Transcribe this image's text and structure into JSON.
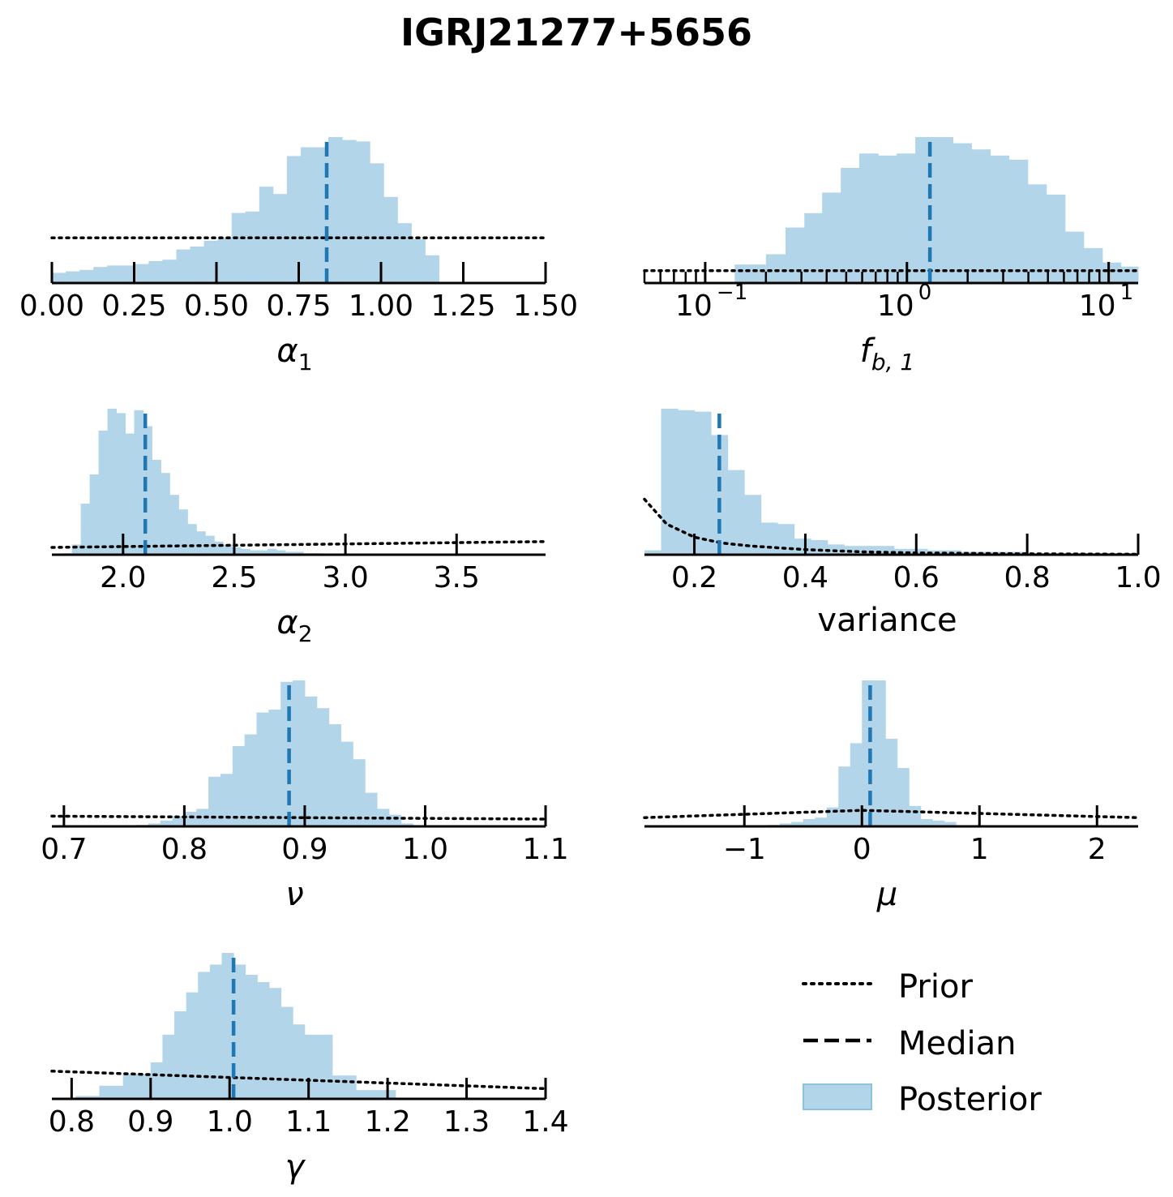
{
  "figure": {
    "title": "IGRJ21277+5656"
  },
  "colors": {
    "posterior": "#b3d5ea",
    "median": "#1f77b4",
    "prior": "#000000"
  },
  "legend": {
    "placement": "lower-right",
    "entries": [
      {
        "label": "Prior",
        "style": "dotted"
      },
      {
        "label": "Median",
        "style": "dashed"
      },
      {
        "label": "Posterior",
        "style": "patch"
      }
    ]
  },
  "chart_data": [
    {
      "type": "bar",
      "xlabel_sym": "α",
      "xlabel_sub": "1",
      "xlim": [
        0.0,
        1.5
      ],
      "xscale": "linear",
      "ticks": [
        0.0,
        0.25,
        0.5,
        0.75,
        1.0,
        1.25,
        1.5
      ],
      "tick_labels": [
        "0.00",
        "0.25",
        "0.50",
        "0.75",
        "1.00",
        "1.25",
        "1.50"
      ],
      "bins": [
        0.0,
        0.042,
        0.084,
        0.126,
        0.168,
        0.21,
        0.252,
        0.294,
        0.336,
        0.378,
        0.42,
        0.462,
        0.504,
        0.546,
        0.588,
        0.63,
        0.672,
        0.714,
        0.756,
        0.798,
        0.84,
        0.882,
        0.924,
        0.966,
        1.008,
        1.05,
        1.092,
        1.134,
        1.176,
        1.218
      ],
      "counts": [
        0.07,
        0.08,
        0.09,
        0.11,
        0.12,
        0.12,
        0.13,
        0.15,
        0.16,
        0.23,
        0.25,
        0.29,
        0.31,
        0.48,
        0.49,
        0.66,
        0.61,
        0.87,
        0.93,
        0.93,
        1.0,
        0.98,
        0.97,
        0.82,
        0.59,
        0.41,
        0.3,
        0.19,
        0.0
      ],
      "median": 0.835,
      "prior_x": [
        0.0,
        1.5
      ],
      "prior_y": [
        0.31,
        0.31
      ],
      "ymax": 1.0
    },
    {
      "type": "bar",
      "xlabel_sym": "f",
      "xlabel_sub": "b, 1",
      "xlim": [
        0.05,
        14.0
      ],
      "xscale": "log",
      "ticks": [
        0.1,
        1,
        10
      ],
      "tick_labels": [
        "10",
        "10",
        "10"
      ],
      "tick_label_exps": [
        "−1",
        "0",
        "1"
      ],
      "bins": [
        0.2,
        0.25,
        0.31,
        0.38,
        0.47,
        0.58,
        0.72,
        0.89,
        1.1,
        1.36,
        1.69,
        2.09,
        2.59,
        3.2,
        3.97,
        4.91,
        6.08,
        7.52,
        9.31,
        11.5,
        14.0
      ],
      "counts": [
        0.14,
        0.27,
        0.34,
        0.44,
        0.56,
        0.63,
        0.62,
        0.63,
        0.71,
        0.71,
        0.68,
        0.65,
        0.62,
        0.6,
        0.48,
        0.43,
        0.25,
        0.17,
        0.1,
        0.08
      ],
      "extra_bins": [
        [
          0.14,
          0.2,
          0.09
        ]
      ],
      "median": 1.3,
      "prior_x": [
        0.05,
        14.0
      ],
      "prior_y": [
        0.06,
        0.06
      ],
      "ymax": 0.71
    },
    {
      "type": "bar",
      "xlabel_sym": "α",
      "xlabel_sub": "2",
      "xlim": [
        1.68,
        3.9
      ],
      "xscale": "linear",
      "ticks": [
        2.0,
        2.5,
        3.0,
        3.5
      ],
      "tick_labels": [
        "2.0",
        "2.5",
        "3.0",
        "3.5"
      ],
      "bins": [
        1.73,
        1.77,
        1.81,
        1.85,
        1.89,
        1.93,
        1.97,
        2.01,
        2.05,
        2.09,
        2.13,
        2.17,
        2.21,
        2.25,
        2.29,
        2.33,
        2.37,
        2.41,
        2.45,
        2.49,
        2.53,
        2.57,
        2.61,
        2.65,
        2.69,
        2.73,
        2.77,
        2.81,
        2.85,
        2.89
      ],
      "counts": [
        0.01,
        0.07,
        0.35,
        0.55,
        0.85,
        1.0,
        0.97,
        0.83,
        0.99,
        0.88,
        0.65,
        0.56,
        0.41,
        0.31,
        0.21,
        0.16,
        0.13,
        0.09,
        0.07,
        0.05,
        0.04,
        0.03,
        0.03,
        0.04,
        0.03,
        0.02,
        0.02,
        0.01,
        0.01
      ],
      "median": 2.1,
      "prior_x": [
        1.68,
        3.9
      ],
      "prior_y": [
        0.05,
        0.09
      ],
      "ymax": 1.0
    },
    {
      "type": "bar",
      "xlabel": "variance",
      "xlim": [
        0.11,
        1.0
      ],
      "xscale": "linear",
      "ticks": [
        0.2,
        0.4,
        0.6,
        0.8,
        1.0
      ],
      "tick_labels": [
        "0.2",
        "0.4",
        "0.6",
        "0.8",
        "1.0"
      ],
      "bins": [
        0.11,
        0.14,
        0.17,
        0.2,
        0.23,
        0.26,
        0.29,
        0.32,
        0.35,
        0.38,
        0.41,
        0.44,
        0.47,
        0.5,
        0.53,
        0.56,
        0.59,
        0.62,
        0.65,
        0.68,
        0.71,
        0.74,
        0.77,
        0.8,
        0.83,
        0.86,
        0.89,
        0.92,
        0.95,
        0.98,
        1.0
      ],
      "counts": [
        0.03,
        1.0,
        0.99,
        0.98,
        0.82,
        0.58,
        0.41,
        0.22,
        0.21,
        0.11,
        0.1,
        0.07,
        0.06,
        0.06,
        0.06,
        0.04,
        0.04,
        0.03,
        0.03,
        0.02,
        0.02,
        0.02,
        0.02,
        0.01,
        0.01,
        0.01,
        0.01,
        0.01,
        0.01,
        0.01
      ],
      "median": 0.245,
      "prior_x": [
        0.11,
        0.15,
        0.2,
        0.25,
        0.3,
        0.4,
        0.5,
        0.6,
        0.8,
        1.0
      ],
      "prior_y": [
        0.38,
        0.21,
        0.12,
        0.08,
        0.06,
        0.035,
        0.02,
        0.012,
        0.006,
        0.003
      ],
      "ymax": 1.0
    },
    {
      "type": "bar",
      "xlabel_sym": "ν",
      "xlim": [
        0.69,
        1.1
      ],
      "xscale": "linear",
      "ticks": [
        0.7,
        0.8,
        0.9,
        1.0,
        1.1
      ],
      "tick_labels": [
        "0.7",
        "0.8",
        "0.9",
        "1.0",
        "1.1"
      ],
      "bins": [
        0.69,
        0.7,
        0.71,
        0.72,
        0.73,
        0.74,
        0.75,
        0.76,
        0.77,
        0.78,
        0.79,
        0.8,
        0.81,
        0.82,
        0.83,
        0.84,
        0.85,
        0.86,
        0.87,
        0.88,
        0.89,
        0.9,
        0.91,
        0.92,
        0.93,
        0.94,
        0.95,
        0.96,
        0.97,
        0.98,
        0.99
      ],
      "counts": [
        0.0,
        0.0,
        0.0,
        0.0,
        0.0,
        0.0,
        0.0,
        0.01,
        0.02,
        0.04,
        0.07,
        0.1,
        0.12,
        0.34,
        0.36,
        0.55,
        0.63,
        0.78,
        0.8,
        0.99,
        1.0,
        0.89,
        0.81,
        0.7,
        0.58,
        0.46,
        0.23,
        0.12,
        0.08,
        0.02
      ],
      "median": 0.887,
      "prior_x": [
        0.69,
        1.1
      ],
      "prior_y": [
        0.07,
        0.05
      ],
      "ymax": 1.0
    },
    {
      "type": "bar",
      "xlabel_sym": "μ",
      "xlim": [
        -1.85,
        2.35
      ],
      "xscale": "linear",
      "ticks": [
        -1,
        0,
        1,
        2
      ],
      "tick_labels": [
        "−1",
        "0",
        "1",
        "2"
      ],
      "bins": [
        -1.0,
        -0.9,
        -0.8,
        -0.7,
        -0.6,
        -0.5,
        -0.4,
        -0.3,
        -0.2,
        -0.1,
        0.0,
        0.1,
        0.2,
        0.3,
        0.4,
        0.5,
        0.6,
        0.7,
        0.8
      ],
      "counts": [
        0.0,
        0.0,
        0.01,
        0.02,
        0.03,
        0.05,
        0.06,
        0.13,
        0.41,
        0.57,
        1.0,
        1.0,
        0.6,
        0.4,
        0.14,
        0.05,
        0.04,
        0.03
      ],
      "median": 0.07,
      "prior_x": [
        -1.85,
        0.0,
        2.35
      ],
      "prior_y": [
        0.06,
        0.11,
        0.06
      ],
      "ymax": 1.0
    },
    {
      "type": "bar",
      "xlabel_sym": "γ",
      "xlim": [
        0.775,
        1.4
      ],
      "xscale": "linear",
      "ticks": [
        0.8,
        0.9,
        1.0,
        1.1,
        1.2,
        1.3,
        1.4
      ],
      "tick_labels": [
        "0.8",
        "0.9",
        "1.0",
        "1.1",
        "1.2",
        "1.3",
        "1.4"
      ],
      "bins": [
        0.805,
        0.835,
        0.865,
        0.9,
        0.915,
        0.93,
        0.945,
        0.96,
        0.975,
        0.99,
        1.005,
        1.02,
        1.035,
        1.05,
        1.065,
        1.08,
        1.095,
        1.13,
        1.16,
        1.21
      ],
      "counts": [
        0.02,
        0.09,
        0.17,
        0.25,
        0.44,
        0.6,
        0.73,
        0.87,
        0.92,
        1.0,
        0.92,
        0.85,
        0.8,
        0.76,
        0.63,
        0.51,
        0.44,
        0.16,
        0.06
      ],
      "median": 1.005,
      "prior_x": [
        0.775,
        1.4
      ],
      "prior_y": [
        0.19,
        0.07
      ],
      "ymax": 1.0
    }
  ]
}
